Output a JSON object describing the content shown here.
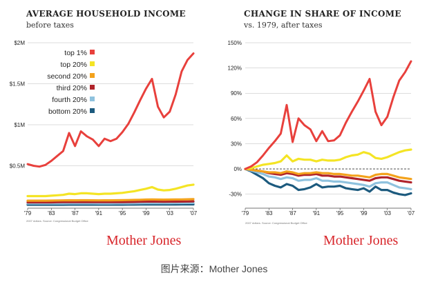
{
  "chart_data": [
    {
      "type": "line",
      "title": "AVERAGE HOUSEHOLD INCOME",
      "subtitle": "before taxes",
      "x": [
        1979,
        1980,
        1981,
        1982,
        1983,
        1984,
        1985,
        1986,
        1987,
        1988,
        1989,
        1990,
        1991,
        1992,
        1993,
        1994,
        1995,
        1996,
        1997,
        1998,
        1999,
        2000,
        2001,
        2002,
        2003,
        2004,
        2005,
        2006,
        2007
      ],
      "x_tick_labels": [
        "'79",
        "'83",
        "'87",
        "'91",
        "'95",
        "'99",
        "'03",
        "'07"
      ],
      "x_tick_years": [
        1979,
        1983,
        1987,
        1991,
        1995,
        1999,
        2003,
        2007
      ],
      "y_ticks": [
        {
          "value": 0.5,
          "label": "$0.5M"
        },
        {
          "value": 1.0,
          "label": "$1M"
        },
        {
          "value": 1.5,
          "label": "$1.5M"
        },
        {
          "value": 2.0,
          "label": "$2M"
        }
      ],
      "ylim": [
        0.0,
        2.0
      ],
      "grid": "horizontal",
      "legend_position": "top-right",
      "series": [
        {
          "name": "top 1%",
          "color": "#e8403c",
          "values": [
            0.52,
            0.5,
            0.49,
            0.51,
            0.56,
            0.62,
            0.68,
            0.9,
            0.74,
            0.92,
            0.86,
            0.82,
            0.74,
            0.83,
            0.8,
            0.83,
            0.91,
            1.01,
            1.15,
            1.3,
            1.44,
            1.56,
            1.22,
            1.09,
            1.16,
            1.37,
            1.65,
            1.79,
            1.87
          ]
        },
        {
          "name": "top 20%",
          "color": "#f4e425",
          "values": [
            0.13,
            0.13,
            0.13,
            0.13,
            0.135,
            0.14,
            0.145,
            0.16,
            0.155,
            0.165,
            0.165,
            0.16,
            0.155,
            0.16,
            0.16,
            0.165,
            0.17,
            0.18,
            0.19,
            0.205,
            0.22,
            0.24,
            0.21,
            0.2,
            0.205,
            0.22,
            0.24,
            0.26,
            0.27
          ]
        },
        {
          "name": "second 20%",
          "color": "#f3a21c",
          "values": [
            0.075,
            0.075,
            0.075,
            0.075,
            0.076,
            0.077,
            0.078,
            0.08,
            0.079,
            0.08,
            0.08,
            0.079,
            0.078,
            0.079,
            0.079,
            0.08,
            0.081,
            0.082,
            0.084,
            0.086,
            0.088,
            0.09,
            0.088,
            0.087,
            0.088,
            0.089,
            0.09,
            0.092,
            0.093
          ]
        },
        {
          "name": "third 20%",
          "color": "#b0232a",
          "values": [
            0.055,
            0.055,
            0.055,
            0.055,
            0.055,
            0.056,
            0.057,
            0.058,
            0.058,
            0.058,
            0.058,
            0.057,
            0.057,
            0.057,
            0.057,
            0.058,
            0.058,
            0.059,
            0.06,
            0.061,
            0.063,
            0.064,
            0.063,
            0.062,
            0.063,
            0.063,
            0.064,
            0.065,
            0.066
          ]
        },
        {
          "name": "fourth 20%",
          "color": "#8fc2de",
          "values": [
            0.04,
            0.04,
            0.04,
            0.04,
            0.04,
            0.041,
            0.041,
            0.042,
            0.042,
            0.042,
            0.042,
            0.042,
            0.041,
            0.041,
            0.041,
            0.042,
            0.042,
            0.042,
            0.043,
            0.044,
            0.045,
            0.046,
            0.045,
            0.045,
            0.045,
            0.046,
            0.046,
            0.047,
            0.047
          ]
        },
        {
          "name": "bottom 20%",
          "color": "#1c5a7e",
          "values": [
            0.025,
            0.025,
            0.025,
            0.025,
            0.025,
            0.025,
            0.025,
            0.026,
            0.026,
            0.026,
            0.026,
            0.026,
            0.026,
            0.026,
            0.026,
            0.026,
            0.026,
            0.027,
            0.027,
            0.028,
            0.028,
            0.029,
            0.028,
            0.028,
            0.028,
            0.028,
            0.029,
            0.029,
            0.029
          ]
        }
      ],
      "source_note": "2007 dollars. Source: Congressional Budget Office"
    },
    {
      "type": "line",
      "title": "CHANGE IN SHARE OF INCOME",
      "subtitle": "vs. 1979, after taxes",
      "x": [
        1979,
        1980,
        1981,
        1982,
        1983,
        1984,
        1985,
        1986,
        1987,
        1988,
        1989,
        1990,
        1991,
        1992,
        1993,
        1994,
        1995,
        1996,
        1997,
        1998,
        1999,
        2000,
        2001,
        2002,
        2003,
        2004,
        2005,
        2006,
        2007
      ],
      "x_tick_labels": [
        "'79",
        "'83",
        "'87",
        "'91",
        "'95",
        "'99",
        "'03",
        "'07"
      ],
      "x_tick_years": [
        1979,
        1983,
        1987,
        1991,
        1995,
        1999,
        2003,
        2007
      ],
      "y_ticks": [
        {
          "value": -30,
          "label": "-30%"
        },
        {
          "value": 0,
          "label": "0%"
        },
        {
          "value": 30,
          "label": "30%"
        },
        {
          "value": 60,
          "label": "60%"
        },
        {
          "value": 90,
          "label": "90%"
        },
        {
          "value": 120,
          "label": "120%"
        },
        {
          "value": 150,
          "label": "150%"
        }
      ],
      "ylim": [
        -45,
        150
      ],
      "grid": "horizontal",
      "series": [
        {
          "name": "top 1%",
          "color": "#e8403c",
          "values": [
            0,
            3,
            8,
            16,
            25,
            33,
            42,
            76,
            32,
            60,
            52,
            47,
            33,
            45,
            33,
            34,
            40,
            55,
            68,
            80,
            93,
            107,
            68,
            52,
            62,
            85,
            105,
            115,
            128
          ]
        },
        {
          "name": "top 20%",
          "color": "#f4e425",
          "values": [
            0,
            1,
            3,
            5,
            6,
            7,
            9,
            16,
            9,
            12,
            11,
            11,
            9,
            11,
            10,
            10,
            11,
            14,
            16,
            17,
            20,
            18,
            13,
            12,
            14,
            17,
            20,
            22,
            23
          ]
        },
        {
          "name": "second 20%",
          "color": "#f3a21c",
          "values": [
            0,
            -1,
            -2,
            -3,
            -4,
            -4,
            -5,
            -3,
            -4,
            -6,
            -5,
            -5,
            -4,
            -5,
            -5,
            -6,
            -6,
            -7,
            -8,
            -8,
            -9,
            -10,
            -7,
            -6,
            -6,
            -8,
            -10,
            -11,
            -12
          ]
        },
        {
          "name": "third 20%",
          "color": "#b0232a",
          "values": [
            0,
            -1,
            -2,
            -3,
            -5,
            -6,
            -7,
            -5,
            -6,
            -8,
            -7,
            -7,
            -6,
            -8,
            -8,
            -9,
            -9,
            -10,
            -11,
            -12,
            -13,
            -14,
            -11,
            -10,
            -10,
            -12,
            -14,
            -15,
            -16
          ]
        },
        {
          "name": "fourth 20%",
          "color": "#8fc2de",
          "values": [
            0,
            -2,
            -4,
            -6,
            -9,
            -10,
            -12,
            -10,
            -11,
            -14,
            -13,
            -13,
            -11,
            -14,
            -14,
            -15,
            -15,
            -16,
            -17,
            -18,
            -19,
            -21,
            -17,
            -16,
            -16,
            -19,
            -22,
            -23,
            -24
          ]
        },
        {
          "name": "bottom 20%",
          "color": "#1c5a7e",
          "values": [
            0,
            -3,
            -7,
            -11,
            -17,
            -20,
            -22,
            -18,
            -20,
            -25,
            -24,
            -22,
            -18,
            -22,
            -21,
            -21,
            -20,
            -23,
            -24,
            -25,
            -23,
            -27,
            -21,
            -25,
            -25,
            -28,
            -30,
            -31,
            -29
          ]
        }
      ],
      "source_note": "2007 dollars. Source: Congressional Budget Office"
    }
  ],
  "branding": {
    "left_logo": "Mother Jones",
    "right_logo": "Mother Jones"
  },
  "caption": "图片来源：Mother Jones",
  "colors": {
    "top1": "#e8403c",
    "top20": "#f4e425",
    "second20": "#f3a21c",
    "third20": "#b0232a",
    "fourth20": "#8fc2de",
    "bottom20": "#1c5a7e",
    "grid": "#b8b8b8",
    "brand": "#d8262b"
  }
}
